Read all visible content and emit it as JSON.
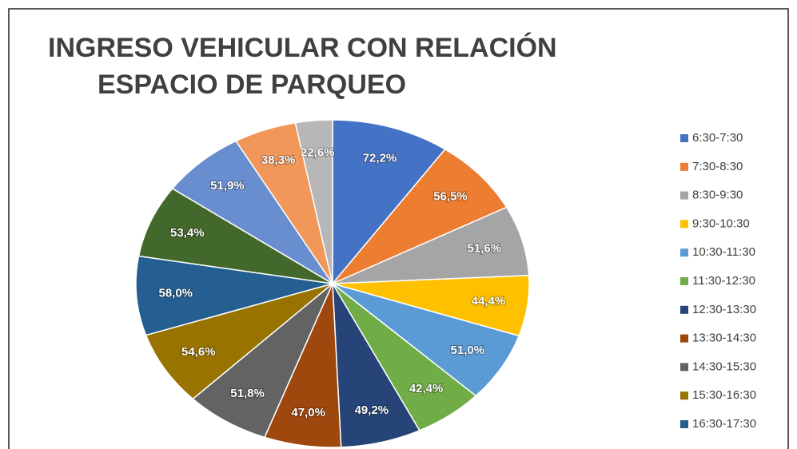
{
  "chart_data": {
    "type": "pie",
    "title": [
      "INGRESO VEHICULAR CON RELACIÓN",
      "ESPACIO DE PARQUEO"
    ],
    "categories": [
      "6:30-7:30",
      "7:30-8:30",
      "8:30-9:30",
      "9:30-10:30",
      "10:30-11:30",
      "11:30-12:30",
      "12:30-13:30",
      "13:30-14:30",
      "14:30-15:30",
      "15:30-16:30",
      "16:30-17:30",
      null,
      null,
      null,
      null
    ],
    "values": [
      72.2,
      56.5,
      51.6,
      44.4,
      51.0,
      42.4,
      49.2,
      47.0,
      51.8,
      54.6,
      58.0,
      53.4,
      51.9,
      38.3,
      22.6
    ],
    "value_labels": [
      "72,2%",
      "56,5%",
      "51,6%",
      "44,4%",
      "51,0%",
      "42,4%",
      "49,2%",
      "47,0%",
      "51,8%",
      "54,6%",
      "58,0%",
      "53,4%",
      "51,9%",
      "38,3%",
      "22,6%"
    ],
    "colors": [
      "#4472c4",
      "#ed7d31",
      "#a5a5a5",
      "#ffc000",
      "#5b9bd5",
      "#70ad47",
      "#264478",
      "#9e480e",
      "#636363",
      "#997300",
      "#255e91",
      "#43682b",
      "#698ed0",
      "#f1975a",
      "#b7b7b7"
    ],
    "legend": "right"
  }
}
